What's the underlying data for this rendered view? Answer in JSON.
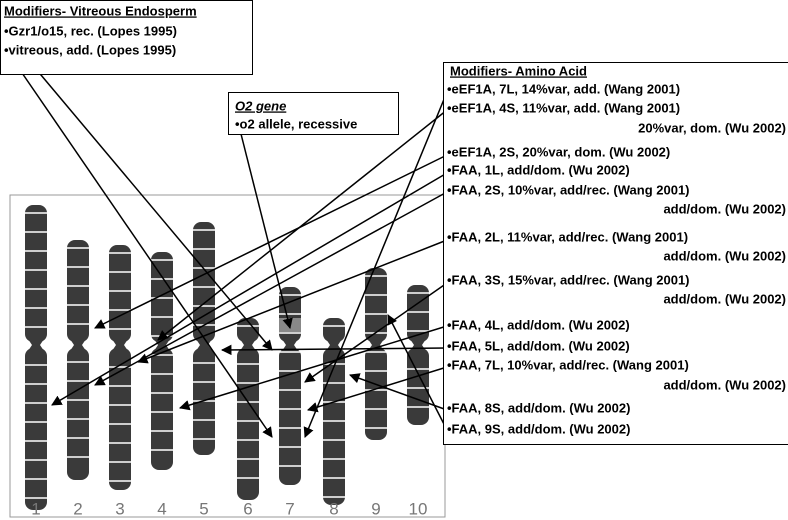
{
  "boxes": {
    "vitreous": {
      "title": "Modifiers- Vitreous Endosperm",
      "items": [
        "•Gzr1/o15, rec. (Lopes 1995)",
        "•vitreous, add. (Lopes 1995)"
      ]
    },
    "o2": {
      "title": "O2 gene",
      "items": [
        "•o2 allele, recessive"
      ]
    },
    "amino": {
      "title": "Modifiers- Amino Acid",
      "items": [
        "•eEF1A, 7L, 14%var, add. (Wang 2001)",
        "•eEF1A, 4S, 11%var, add. (Wang 2001)",
        "20%var, dom. (Wu 2002)",
        "•eEF1A, 2S, 20%var, dom. (Wu 2002)",
        "•FAA, 1L, add/dom. (Wu 2002)",
        "•FAA, 2S, 10%var, add/rec. (Wang 2001)",
        "add/dom. (Wu 2002)",
        "•FAA, 2L, 11%var, add/rec. (Wang 2001)",
        "add/dom. (Wu 2002)",
        "•FAA, 3S, 15%var, add/rec. (Wang 2001)",
        "add/dom. (Wu 2002)",
        "•FAA, 4L, add/dom. (Wu 2002)",
        "•FAA, 5L, add/dom. (Wu 2002)",
        "•FAA, 7L, 10%var, add/rec. (Wang 2001)",
        "add/dom. (Wu 2002)",
        "•FAA, 8S, add/dom. (Wu 2002)",
        "•FAA, 9S, add/dom. (Wu 2002)"
      ]
    }
  },
  "chromosome_labels": [
    "1",
    "2",
    "3",
    "4",
    "5",
    "6",
    "7",
    "8",
    "9",
    "10"
  ]
}
